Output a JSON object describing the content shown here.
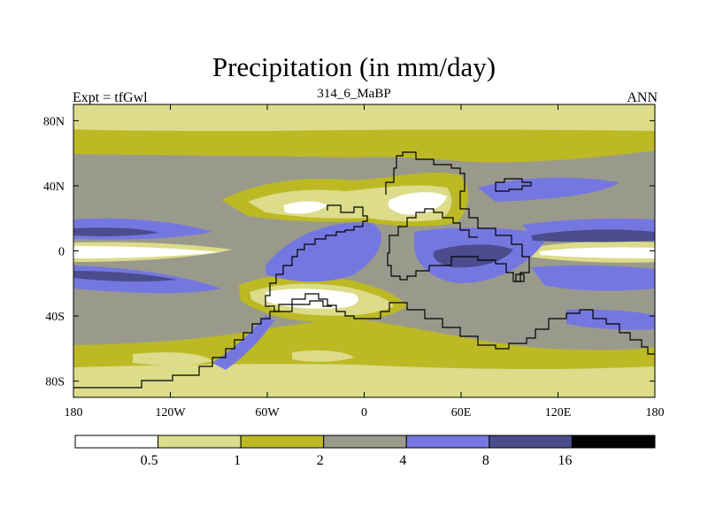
{
  "chart_data": {
    "type": "heatmap",
    "title": "Precipitation (in mm/day)",
    "left_label": "Expt = tfGwl",
    "center_label": "314_6_MaBP",
    "right_label": "ANN",
    "x_axis": {
      "range": [
        -180,
        180
      ],
      "ticks": [
        {
          "value": -180,
          "label": "180"
        },
        {
          "value": -120,
          "label": "120W"
        },
        {
          "value": -60,
          "label": "60W"
        },
        {
          "value": 0,
          "label": "0"
        },
        {
          "value": 60,
          "label": "60E"
        },
        {
          "value": 120,
          "label": "120E"
        },
        {
          "value": 180,
          "label": "180"
        }
      ]
    },
    "y_axis": {
      "range": [
        -90,
        90
      ],
      "ticks": [
        {
          "value": 80,
          "label": "80N"
        },
        {
          "value": 40,
          "label": "40N"
        },
        {
          "value": 0,
          "label": "0"
        },
        {
          "value": -40,
          "label": "40S"
        },
        {
          "value": -80,
          "label": "80S"
        }
      ]
    },
    "colorbar": {
      "levels": [
        0.5,
        1,
        2,
        4,
        8,
        16
      ],
      "labels": [
        "0.5",
        "1",
        "2",
        "4",
        "8",
        "16"
      ],
      "colors": [
        "#ffffff",
        "#dcdc8a",
        "#bcb924",
        "#9a9a8c",
        "#7577e0",
        "#4b4c8c",
        "#000000"
      ]
    }
  }
}
